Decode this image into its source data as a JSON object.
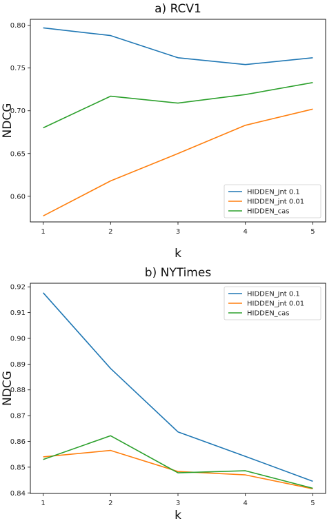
{
  "chart_data": [
    {
      "type": "line",
      "title": "a) RCV1",
      "xlabel": "k",
      "ylabel": "NDCG",
      "x": [
        1,
        2,
        3,
        4,
        5
      ],
      "xticks": [
        "1",
        "2",
        "3",
        "4",
        "5"
      ],
      "ylim": [
        0.57,
        0.807
      ],
      "yticks": [
        "0.60",
        "0.65",
        "0.70",
        "0.75",
        "0.80"
      ],
      "grid": false,
      "legend_position": "lower-right",
      "series": [
        {
          "name": "HIDDEN_jnt 0.1",
          "color": "#1f77b4",
          "values": [
            0.797,
            0.788,
            0.762,
            0.754,
            0.762
          ]
        },
        {
          "name": "HIDDEN_jnt 0.01",
          "color": "#ff7f0e",
          "values": [
            0.577,
            0.618,
            0.65,
            0.683,
            0.702
          ]
        },
        {
          "name": "HIDDEN_cas",
          "color": "#2ca02c",
          "values": [
            0.68,
            0.717,
            0.709,
            0.719,
            0.733
          ]
        }
      ]
    },
    {
      "type": "line",
      "title": "b) NYTimes",
      "xlabel": "k",
      "ylabel": "NDCG",
      "x": [
        1,
        2,
        3,
        4,
        5
      ],
      "xticks": [
        "1",
        "2",
        "3",
        "4",
        "5"
      ],
      "ylim": [
        0.8398,
        0.9214
      ],
      "yticks": [
        "0.84",
        "0.85",
        "0.86",
        "0.87",
        "0.88",
        "0.89",
        "0.90",
        "0.91",
        "0.92"
      ],
      "grid": false,
      "legend_position": "upper-right",
      "series": [
        {
          "name": "HIDDEN_jnt 0.1",
          "color": "#1f77b4",
          "values": [
            0.9177,
            0.8883,
            0.8637,
            0.8542,
            0.8445
          ]
        },
        {
          "name": "HIDDEN_jnt 0.01",
          "color": "#ff7f0e",
          "values": [
            0.854,
            0.8565,
            0.8483,
            0.847,
            0.8416
          ]
        },
        {
          "name": "HIDDEN_cas",
          "color": "#2ca02c",
          "values": [
            0.853,
            0.8622,
            0.8478,
            0.8486,
            0.8418
          ]
        }
      ]
    }
  ]
}
